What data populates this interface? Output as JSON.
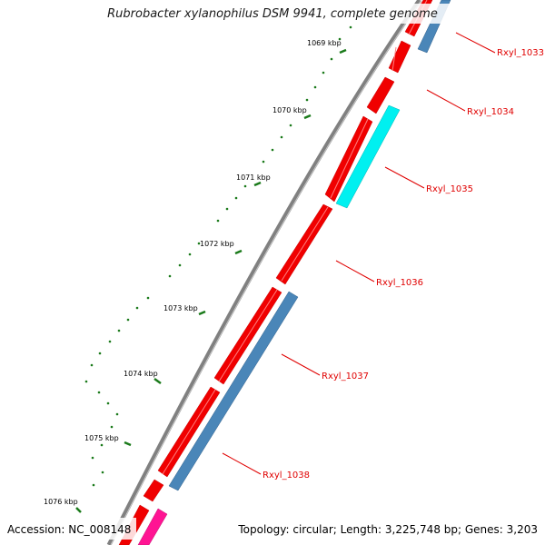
{
  "title": "Rubrobacter xylanophilus DSM 9941, complete genome",
  "accession": "Accession: NC_008148",
  "summary": "Topology: circular; Length: 3,225,748 bp; Genes: 3,203",
  "colors": {
    "backbone": "#7a7a7a",
    "forward_gene": "#f00000",
    "reverse_gene": "#4a86b8",
    "cyan_gene": "#00ffff",
    "magenta_gene": "#ff1493",
    "tick": "#1a7a1a",
    "label": "#e00000"
  },
  "kbp_ticks": [
    {
      "label": "1069 kbp"
    },
    {
      "label": "1070 kbp"
    },
    {
      "label": "1071 kbp"
    },
    {
      "label": "1072 kbp"
    },
    {
      "label": "1073 kbp"
    },
    {
      "label": "1074 kbp"
    },
    {
      "label": "1075 kbp"
    },
    {
      "label": "1076 kbp"
    }
  ],
  "genes": [
    {
      "name": "Rxyl_1033"
    },
    {
      "name": "Rxyl_1034"
    },
    {
      "name": "Rxyl_1035"
    },
    {
      "name": "Rxyl_1036"
    },
    {
      "name": "Rxyl_1037"
    },
    {
      "name": "Rxyl_1038"
    }
  ]
}
